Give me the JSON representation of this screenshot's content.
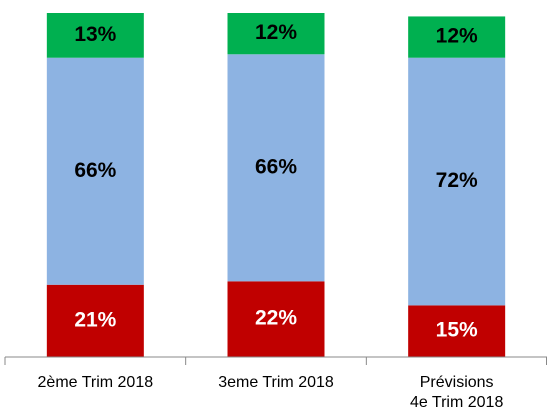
{
  "chart_data": {
    "type": "stacked-bar",
    "categories": [
      "2ème Trim  2018",
      "3eme Trim  2018",
      "Prévisions\n4e Trim  2018"
    ],
    "series": [
      {
        "color": "#c00000",
        "label_color": "#ffffff",
        "values": [
          21,
          22,
          15
        ],
        "value_labels": [
          "21%",
          "22%",
          "15%"
        ]
      },
      {
        "color": "#8db3e2",
        "label_color": "#000000",
        "values": [
          66,
          66,
          72
        ],
        "value_labels": [
          "66%",
          "66%",
          "72%"
        ]
      },
      {
        "color": "#00b050",
        "label_color": "#000000",
        "values": [
          13,
          12,
          12
        ],
        "value_labels": [
          "13%",
          "12%",
          "12%"
        ]
      }
    ],
    "ylim": [
      0,
      100
    ]
  }
}
